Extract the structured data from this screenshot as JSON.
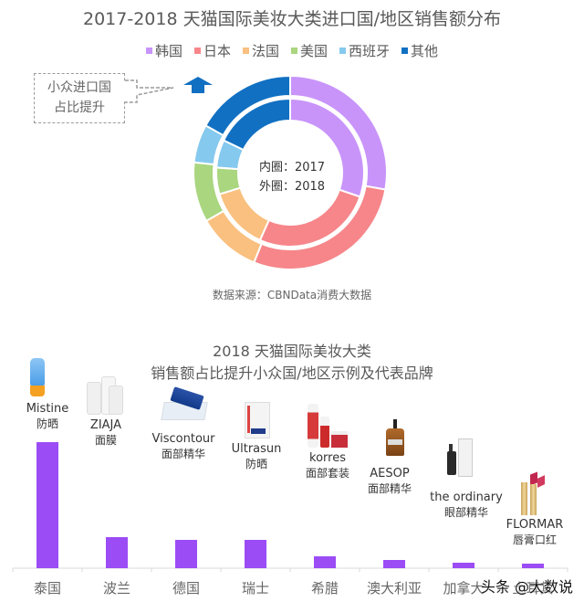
{
  "top_chart": {
    "title": "2017-2018 天猫国际美妆大类进口国/地区销售额分布",
    "legend": [
      {
        "label": "韩国",
        "color": "#c894fa"
      },
      {
        "label": "日本",
        "color": "#f6868a"
      },
      {
        "label": "法国",
        "color": "#f9c07f"
      },
      {
        "label": "美国",
        "color": "#a9d67f"
      },
      {
        "label": "西班牙",
        "color": "#85c9ee"
      },
      {
        "label": "其他",
        "color": "#1170c2"
      }
    ],
    "callout_line1": "小众进口国",
    "callout_line2": "占比提升",
    "center_line1": "内圈：2017",
    "center_line2": "外圈：2018",
    "source": "数据来源：CBNData消费大数据"
  },
  "bottom_chart": {
    "title_line1": "2018 天猫国际美妆大类",
    "title_line2": "销售额占比提升小众国/地区示例及代表品牌",
    "bar_color": "#9b4cf5",
    "brands": [
      {
        "name": "Mistine",
        "category": "防晒"
      },
      {
        "name": "ZIAJA",
        "category": "面膜"
      },
      {
        "name": "Viscontour",
        "category": "面部精华"
      },
      {
        "name": "Ultrasun",
        "category": "防晒"
      },
      {
        "name": "korres",
        "category": "面部套装"
      },
      {
        "name": "AESOP",
        "category": "面部精华"
      },
      {
        "name": "the ordinary",
        "category": "眼部精华"
      },
      {
        "name": "FLORMAR",
        "category": "唇膏口红"
      }
    ]
  },
  "watermark": "头条 @大数说",
  "chart_data": [
    {
      "type": "pie",
      "title": "2017-2018 天猫国际美妆大类进口国/地区销售额分布",
      "categories": [
        "韩国",
        "日本",
        "法国",
        "美国",
        "西班牙",
        "其他"
      ],
      "series": [
        {
          "name": "内圈：2017",
          "values": [
            30.3,
            26.4,
            13.6,
            5.8,
            6.1,
            17.8
          ]
        },
        {
          "name": "外圈：2018",
          "values": [
            27.8,
            28.3,
            10.6,
            10.0,
            6.4,
            16.9
          ]
        }
      ],
      "colors": [
        "#c894fa",
        "#f6868a",
        "#f9c07f",
        "#a9d67f",
        "#85c9ee",
        "#1170c2"
      ],
      "legend_position": "top",
      "annotation": "小众进口国占比提升",
      "unit": "% (estimated from ring angles)"
    },
    {
      "type": "bar",
      "title": "2018 天猫国际美妆大类 销售额占比提升小众国/地区示例及代表品牌",
      "categories": [
        "泰国",
        "波兰",
        "德国",
        "瑞士",
        "希腊",
        "澳大利亚",
        "加拿大",
        "土耳其"
      ],
      "values": [
        138,
        34,
        31,
        31,
        13,
        9,
        6,
        5
      ],
      "value_note": "relative bar heights in px; no y-axis shown",
      "annotations": [
        "Mistine 防晒",
        "ZIAJA 面膜",
        "Viscontour 面部精华",
        "Ultrasun 防晒",
        "korres 面部套装",
        "AESOP 面部精华",
        "the ordinary 眼部精华",
        "FLORMAR 唇膏口红"
      ],
      "grid": false
    }
  ]
}
